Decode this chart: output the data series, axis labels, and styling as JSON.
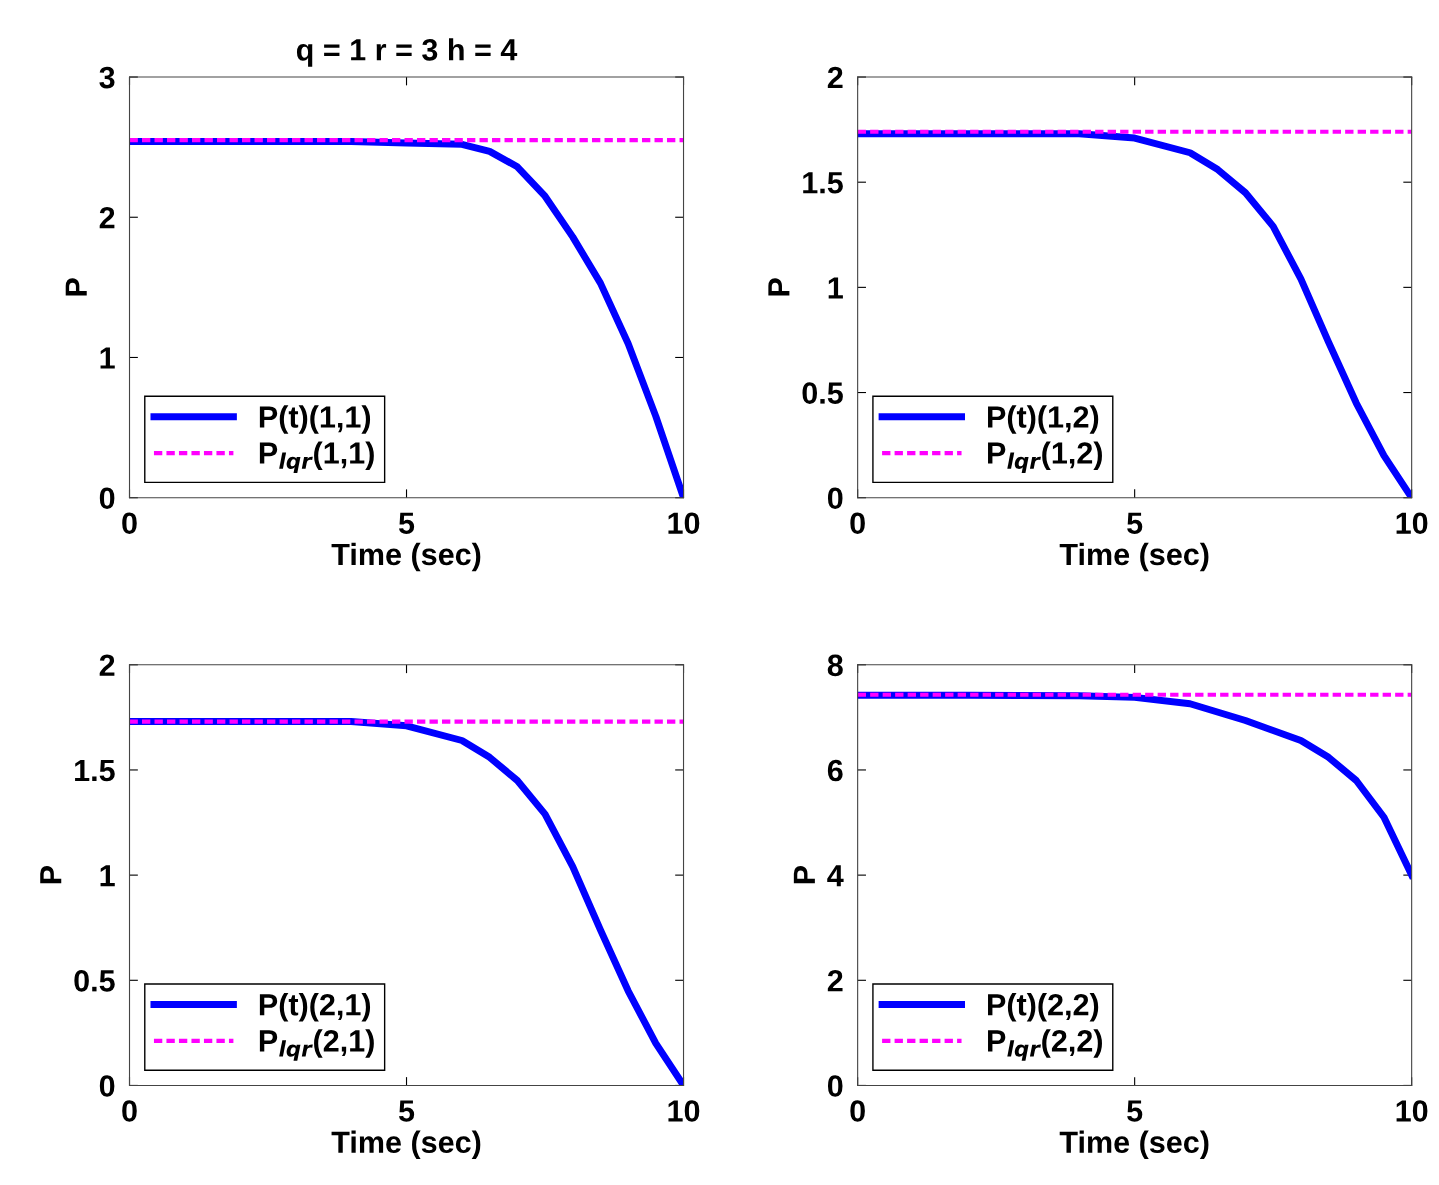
{
  "chart_data": [
    {
      "type": "line",
      "title": "q = 1 r = 3 h = 4",
      "xlabel": "Time (sec)",
      "ylabel": "P",
      "xlim": [
        0,
        10
      ],
      "xticks": [
        0,
        5,
        10
      ],
      "ylim": [
        0,
        3
      ],
      "yticks": [
        0,
        1,
        2,
        3
      ],
      "legend": "bottom left",
      "grid": false,
      "series": [
        {
          "name": "P(t)(1,1)",
          "color": "#0000ff",
          "line_style": "solid",
          "x": [
            0,
            2,
            4,
            5,
            6,
            6.5,
            7,
            7.5,
            8,
            8.5,
            9,
            9.5,
            10
          ],
          "values": [
            2.54,
            2.54,
            2.54,
            2.53,
            2.52,
            2.47,
            2.36,
            2.15,
            1.86,
            1.53,
            1.1,
            0.58,
            0
          ]
        },
        {
          "name": "P$_{lqr}$(1,1)",
          "color": "#ff00ff",
          "line_style": "dashed",
          "x": [
            0,
            10
          ],
          "values": [
            2.55,
            2.55
          ]
        }
      ]
    },
    {
      "type": "line",
      "xlabel": "Time (sec)",
      "ylabel": "P",
      "xlim": [
        0,
        10
      ],
      "xticks": [
        0,
        5,
        10
      ],
      "ylim": [
        0,
        2
      ],
      "yticks": [
        0,
        0.5,
        1,
        1.5,
        2
      ],
      "legend": "bottom left",
      "grid": false,
      "series": [
        {
          "name": "P(t)(1,2)",
          "color": "#0000ff",
          "line_style": "solid",
          "x": [
            0,
            2,
            4,
            5,
            6,
            6.5,
            7,
            7.5,
            8,
            8.5,
            9,
            9.5,
            10
          ],
          "values": [
            1.73,
            1.73,
            1.73,
            1.71,
            1.64,
            1.56,
            1.45,
            1.29,
            1.04,
            0.74,
            0.45,
            0.2,
            0
          ]
        },
        {
          "name": "P$_{lqr}$(1,2)",
          "color": "#ff00ff",
          "line_style": "dashed",
          "x": [
            0,
            10
          ],
          "values": [
            1.74,
            1.74
          ]
        }
      ]
    },
    {
      "type": "line",
      "xlabel": "Time (sec)",
      "ylabel": "P",
      "xlim": [
        0,
        10
      ],
      "xticks": [
        0,
        5,
        10
      ],
      "ylim": [
        0,
        2
      ],
      "yticks": [
        0,
        0.5,
        1,
        1.5,
        2
      ],
      "legend": "bottom left",
      "grid": false,
      "series": [
        {
          "name": "P(t)(2,1)",
          "color": "#0000ff",
          "line_style": "solid",
          "x": [
            0,
            2,
            4,
            5,
            6,
            6.5,
            7,
            7.5,
            8,
            8.5,
            9,
            9.5,
            10
          ],
          "values": [
            1.73,
            1.73,
            1.73,
            1.71,
            1.64,
            1.56,
            1.45,
            1.29,
            1.04,
            0.74,
            0.45,
            0.2,
            0
          ]
        },
        {
          "name": "P$_{lqr}$(2,1)",
          "color": "#ff00ff",
          "line_style": "dashed",
          "x": [
            0,
            10
          ],
          "values": [
            1.73,
            1.73
          ]
        }
      ]
    },
    {
      "type": "line",
      "xlabel": "Time (sec)",
      "ylabel": "P",
      "xlim": [
        0,
        10
      ],
      "xticks": [
        0,
        5,
        10
      ],
      "ylim": [
        0,
        8
      ],
      "yticks": [
        0,
        2,
        4,
        6,
        8
      ],
      "legend": "bottom left",
      "grid": false,
      "series": [
        {
          "name": "P(t)(2,2)",
          "color": "#0000ff",
          "line_style": "solid",
          "x": [
            0,
            2,
            4,
            5,
            6,
            7,
            8,
            8.5,
            9,
            9.5,
            10
          ],
          "values": [
            7.42,
            7.42,
            7.41,
            7.38,
            7.26,
            6.94,
            6.56,
            6.24,
            5.8,
            5.1,
            4.0
          ]
        },
        {
          "name": "P$_{lqr}$(2,2)",
          "color": "#ff00ff",
          "line_style": "dashed",
          "x": [
            0,
            10
          ],
          "values": [
            7.43,
            7.43
          ]
        }
      ]
    }
  ]
}
